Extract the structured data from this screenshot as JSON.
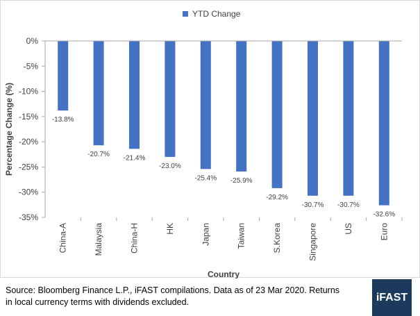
{
  "chart_data": {
    "type": "bar",
    "categories": [
      "China-A",
      "Malaysia",
      "China-H",
      "HK",
      "Japan",
      "Taiwan",
      "S.Korea",
      "Singapore",
      "US",
      "Euro"
    ],
    "series": [
      {
        "name": "YTD Change",
        "values": [
          -13.8,
          -20.7,
          -21.4,
          -23.0,
          -25.4,
          -25.9,
          -29.2,
          -30.7,
          -30.7,
          -32.6
        ]
      }
    ],
    "data_labels": [
      "-13.8%",
      "-20.7%",
      "-21.4%",
      "-23.0%",
      "-25.4%",
      "-25.9%",
      "-29.2%",
      "-30.7%",
      "-30.7%",
      "-32.6%"
    ],
    "xlabel": "Country",
    "ylabel": "Percentage Change (%)",
    "ylim": [
      -35,
      0
    ],
    "yticks": [
      0,
      -5,
      -10,
      -15,
      -20,
      -25,
      -30,
      -35
    ],
    "ytick_labels": [
      "0%",
      "-5%",
      "-10%",
      "-15%",
      "-20%",
      "-25%",
      "-30%",
      "-35%"
    ],
    "legend_position": "top-center",
    "grid": false,
    "bar_color": "#4472c4"
  },
  "footer": {
    "source_line1": "Source: Bloomberg Finance L.P., iFAST compilations. Data as of 23 Mar 2020.  Returns",
    "source_line2": "in local currency terms with dividends excluded.",
    "logo_text": "iFAST",
    "logo_color": "#1b3a5c"
  }
}
